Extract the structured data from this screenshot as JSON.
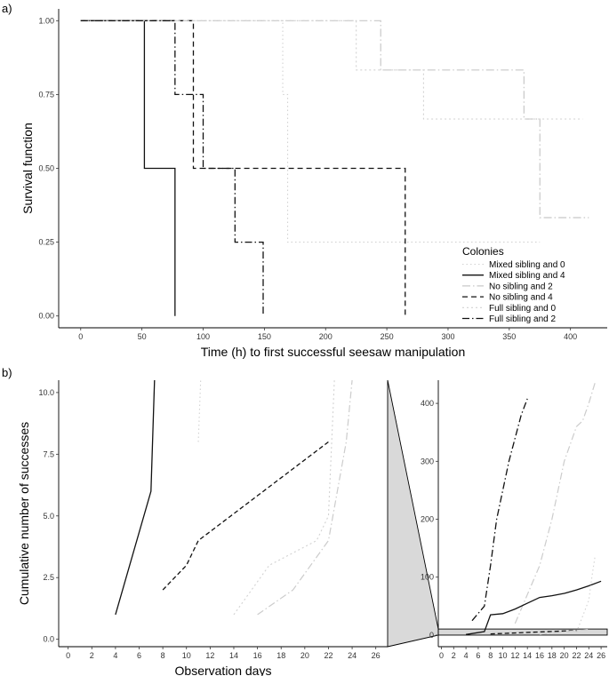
{
  "panel_a_label": "a)",
  "panel_b_label": "b)",
  "chart_data": [
    {
      "type": "line",
      "subtype": "kaplan-meier step",
      "panel": "a)",
      "xlabel": "Time (h) to first successful seesaw manipulation",
      "ylabel": "Survival function",
      "xlim": [
        -18,
        430
      ],
      "ylim": [
        -0.04,
        1.04
      ],
      "xticks": [
        0,
        50,
        100,
        150,
        200,
        250,
        300,
        350,
        400
      ],
      "yticks": [
        0,
        0.25,
        0.5,
        0.75,
        1
      ],
      "ytick_labels": [
        "0.00",
        "0.25",
        "0.50",
        "0.75",
        "1.00"
      ],
      "grid": false,
      "legend_title": "Colonies",
      "legend_position": "bottom-right",
      "series": [
        {
          "name": "Mixed sibling and 0",
          "color": "#d2d2d2",
          "dash": "1.5,3",
          "width": 1.1,
          "x": [
            0,
            165,
            165,
            169,
            169,
            375
          ],
          "y": [
            1,
            1,
            0.75,
            0.75,
            0.25,
            0.25
          ]
        },
        {
          "name": "Mixed sibling and 4",
          "color": "#111111",
          "dash": "",
          "width": 1.3,
          "x": [
            0,
            52,
            52,
            77,
            77
          ],
          "y": [
            1,
            1,
            0.5,
            0.5,
            0
          ]
        },
        {
          "name": "No sibling and 2",
          "color": "#c8c8c8",
          "dash": "9,3,1.5,3",
          "width": 1.2,
          "x": [
            0,
            245,
            245,
            362,
            362,
            375,
            375,
            415
          ],
          "y": [
            1,
            1,
            0.833,
            0.833,
            0.667,
            0.667,
            0.333,
            0.333
          ]
        },
        {
          "name": "No sibling and 4",
          "color": "#111111",
          "dash": "6,4",
          "width": 1.3,
          "x": [
            0,
            92,
            92,
            265,
            265
          ],
          "y": [
            1,
            1,
            0.5,
            0.5,
            0
          ]
        },
        {
          "name": "Full sibling and 0",
          "color": "#d2d2d2",
          "dash": "2,3",
          "width": 1.1,
          "x": [
            0,
            225,
            225,
            280,
            280,
            410
          ],
          "y": [
            1,
            1,
            0.833,
            0.833,
            0.667,
            0.667
          ]
        },
        {
          "name": "Full sibling and 2",
          "color": "#111111",
          "dash": "8,3,1.5,3",
          "width": 1.3,
          "x": [
            0,
            77,
            77,
            100,
            100,
            126,
            126,
            149,
            149
          ],
          "y": [
            1,
            1,
            0.75,
            0.75,
            0.5,
            0.5,
            0.25,
            0.25,
            0
          ]
        }
      ]
    },
    {
      "type": "line",
      "panel": "b) main (zoomed)",
      "xlabel": "Observation days",
      "ylabel": "Cumulative number of successes",
      "xlim": [
        -0.8,
        27
      ],
      "ylim": [
        -0.3,
        10.5
      ],
      "xticks": [
        0,
        2,
        4,
        6,
        8,
        10,
        12,
        14,
        16,
        18,
        20,
        22,
        24,
        26
      ],
      "yticks": [
        0,
        2.5,
        5,
        7.5,
        10
      ],
      "ytick_labels": [
        "0.0",
        "2.5",
        "5.0",
        "7.5",
        "10.0"
      ],
      "grid": false,
      "series": [
        {
          "name": "Mixed sibling and 4",
          "color": "#111111",
          "dash": "",
          "width": 1.3,
          "x": [
            4,
            7,
            7.3
          ],
          "y": [
            1,
            6,
            10.5
          ]
        },
        {
          "name": "No sibling and 4",
          "color": "#111111",
          "dash": "5,3",
          "width": 1.3,
          "x": [
            8,
            10,
            11,
            22
          ],
          "y": [
            2,
            3,
            4,
            8
          ]
        },
        {
          "name": "No sibling and 2",
          "color": "#cccccc",
          "dash": "8,3,1.5,3",
          "width": 1.2,
          "x": [
            16,
            19,
            22,
            23.5,
            24
          ],
          "y": [
            1,
            2,
            4,
            8,
            10.5
          ]
        },
        {
          "name": "Full sibling and 0",
          "color": "#d2d2d2",
          "dash": "2,3",
          "width": 1.1,
          "x": [
            14,
            17,
            21,
            22,
            22.5
          ],
          "y": [
            1,
            3,
            4,
            5,
            10.5
          ]
        },
        {
          "name": "Mixed sibling and 0",
          "color": "#d2d2d2",
          "dash": "1.5,3",
          "width": 1.1,
          "x": [
            11,
            11.2
          ],
          "y": [
            8,
            10.5
          ]
        }
      ]
    },
    {
      "type": "line",
      "panel": "b) inset (full scale)",
      "xlabel": "",
      "ylabel": "",
      "xlim": [
        -0.5,
        27
      ],
      "ylim": [
        -20,
        440
      ],
      "xticks": [
        0,
        2,
        4,
        6,
        8,
        10,
        12,
        14,
        16,
        18,
        20,
        22,
        24,
        26
      ],
      "yticks": [
        0,
        100,
        200,
        300,
        400
      ],
      "grid": false,
      "highlight_band": [
        0,
        10.5
      ],
      "series": [
        {
          "name": "Full sibling and 2",
          "color": "#111111",
          "dash": "8,3,1.5,3",
          "width": 1.3,
          "x": [
            5,
            7,
            8,
            9,
            10,
            11,
            12,
            13,
            14
          ],
          "y": [
            25,
            50,
            120,
            200,
            250,
            300,
            340,
            380,
            408
          ]
        },
        {
          "name": "Full sibling and 0",
          "color": "#cccccc",
          "dash": "8,3,1.5,3",
          "width": 1.2,
          "x": [
            12,
            14,
            16,
            18,
            20,
            21,
            22,
            23,
            24,
            25
          ],
          "y": [
            20,
            70,
            120,
            200,
            300,
            330,
            360,
            370,
            400,
            435
          ]
        },
        {
          "name": "Mixed sibling and 4",
          "color": "#111111",
          "dash": "",
          "width": 1.3,
          "x": [
            4,
            7,
            8,
            10,
            12,
            14,
            16,
            18,
            20,
            22,
            24,
            26
          ],
          "y": [
            1,
            6,
            35,
            37,
            45,
            55,
            65,
            68,
            72,
            78,
            85,
            93
          ]
        },
        {
          "name": "Mixed sibling and 0",
          "color": "#d2d2d2",
          "dash": "1.5,3",
          "width": 1.1,
          "x": [
            22,
            24,
            24.5,
            25
          ],
          "y": [
            5,
            60,
            100,
            135
          ]
        },
        {
          "name": "No sibling and 4",
          "color": "#111111",
          "dash": "5,3",
          "width": 1.3,
          "x": [
            8,
            22
          ],
          "y": [
            2,
            8
          ]
        },
        {
          "name": "No sibling and 2",
          "color": "#cccccc",
          "dash": "8,3,1.5,3",
          "width": 1.2,
          "x": [
            16,
            24
          ],
          "y": [
            1,
            10
          ]
        }
      ]
    }
  ]
}
